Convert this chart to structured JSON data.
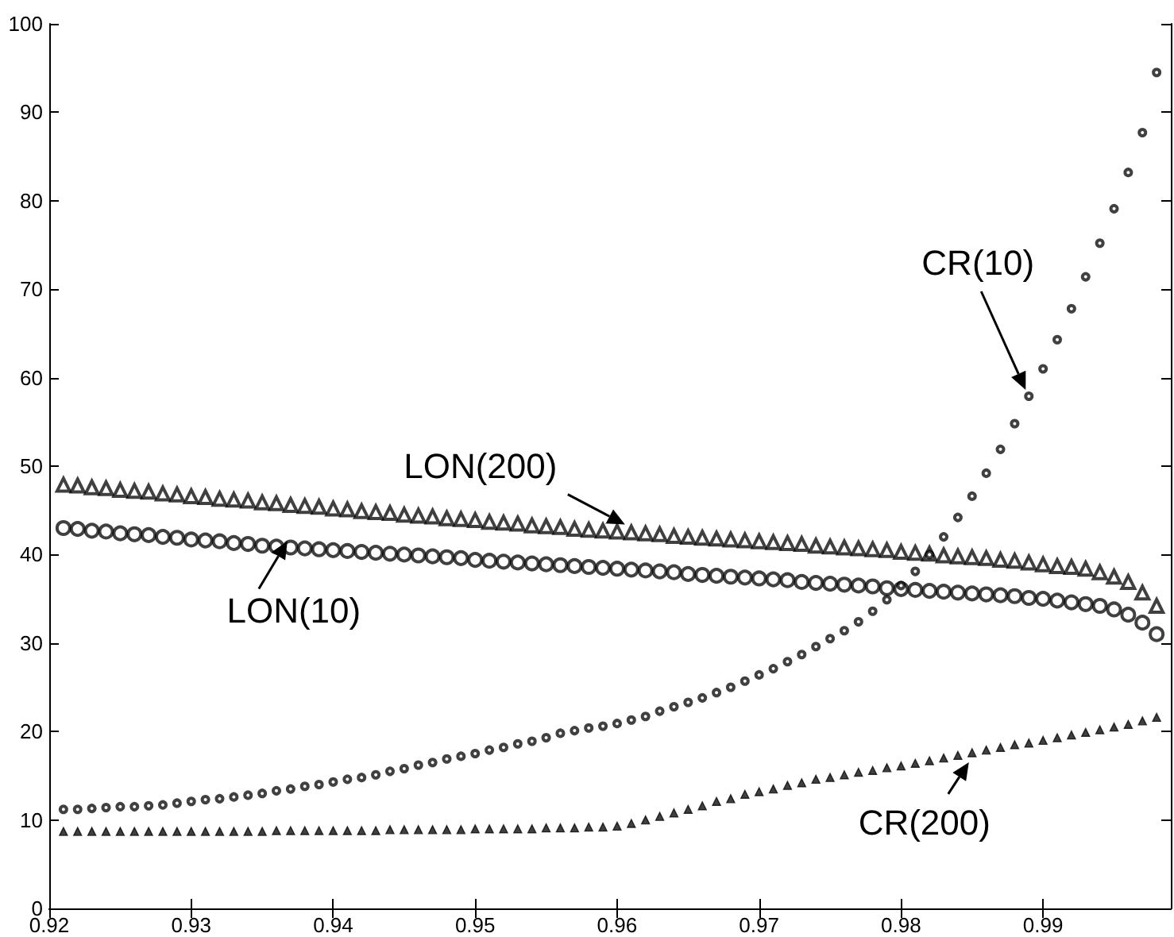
{
  "chart_data": {
    "type": "scatter",
    "x": [
      0.921,
      0.922,
      0.923,
      0.924,
      0.925,
      0.926,
      0.927,
      0.928,
      0.929,
      0.93,
      0.931,
      0.932,
      0.933,
      0.934,
      0.935,
      0.936,
      0.937,
      0.938,
      0.939,
      0.94,
      0.941,
      0.942,
      0.943,
      0.944,
      0.945,
      0.946,
      0.947,
      0.948,
      0.949,
      0.95,
      0.951,
      0.952,
      0.953,
      0.954,
      0.955,
      0.956,
      0.957,
      0.958,
      0.959,
      0.96,
      0.961,
      0.962,
      0.963,
      0.964,
      0.965,
      0.966,
      0.967,
      0.968,
      0.969,
      0.97,
      0.971,
      0.972,
      0.973,
      0.974,
      0.975,
      0.976,
      0.977,
      0.978,
      0.979,
      0.98,
      0.981,
      0.982,
      0.983,
      0.984,
      0.985,
      0.986,
      0.987,
      0.988,
      0.989,
      0.99,
      0.991,
      0.992,
      0.993,
      0.994,
      0.995,
      0.996,
      0.997,
      0.998
    ],
    "series": [
      {
        "color": "#000000",
        "marker": "triangle",
        "values": [
          47.9,
          47.8,
          47.6,
          47.5,
          47.3,
          47.2,
          47.1,
          46.9,
          46.8,
          46.6,
          46.5,
          46.3,
          46.2,
          46.1,
          45.9,
          45.8,
          45.6,
          45.5,
          45.4,
          45.2,
          45.1,
          44.9,
          44.8,
          44.7,
          44.5,
          44.4,
          44.3,
          44.1,
          44.0,
          43.9,
          43.7,
          43.6,
          43.5,
          43.3,
          43.2,
          43.1,
          42.9,
          42.8,
          42.7,
          42.6,
          42.5,
          42.4,
          42.3,
          42.1,
          42.0,
          41.9,
          41.8,
          41.7,
          41.6,
          41.5,
          41.4,
          41.3,
          41.2,
          41.0,
          40.9,
          40.8,
          40.7,
          40.6,
          40.5,
          40.3,
          40.2,
          40.1,
          39.9,
          39.8,
          39.7,
          39.6,
          39.4,
          39.3,
          39.1,
          38.9,
          38.7,
          38.6,
          38.4,
          38.0,
          37.5,
          36.9,
          35.7,
          34.2
        ]
      },
      {
        "color": "#000000",
        "marker": "circle",
        "values": [
          43.0,
          42.9,
          42.7,
          42.6,
          42.4,
          42.3,
          42.2,
          42.0,
          41.9,
          41.7,
          41.6,
          41.5,
          41.3,
          41.2,
          41.0,
          40.9,
          40.8,
          40.7,
          40.6,
          40.5,
          40.4,
          40.3,
          40.2,
          40.1,
          40.0,
          39.9,
          39.8,
          39.7,
          39.6,
          39.4,
          39.3,
          39.2,
          39.1,
          39.0,
          38.9,
          38.8,
          38.7,
          38.6,
          38.5,
          38.4,
          38.3,
          38.2,
          38.1,
          38.0,
          37.8,
          37.7,
          37.6,
          37.5,
          37.4,
          37.3,
          37.2,
          37.1,
          36.9,
          36.8,
          36.7,
          36.6,
          36.5,
          36.4,
          36.2,
          36.1,
          36.0,
          35.9,
          35.8,
          35.7,
          35.6,
          35.5,
          35.4,
          35.3,
          35.1,
          35.0,
          34.8,
          34.6,
          34.4,
          34.2,
          33.8,
          33.2,
          32.3,
          31.0
        ]
      },
      {
        "color": "#000000",
        "marker": "circle",
        "values": [
          11.2,
          11.2,
          11.3,
          11.4,
          11.5,
          11.5,
          11.6,
          11.7,
          11.9,
          12.1,
          12.3,
          12.4,
          12.6,
          12.8,
          13.0,
          13.3,
          13.5,
          13.8,
          14.0,
          14.3,
          14.6,
          14.8,
          15.1,
          15.5,
          15.8,
          16.2,
          16.5,
          16.9,
          17.2,
          17.5,
          17.9,
          18.2,
          18.6,
          18.9,
          19.3,
          19.8,
          20.1,
          20.4,
          20.6,
          20.9,
          21.3,
          21.7,
          22.3,
          22.8,
          23.3,
          23.8,
          24.4,
          25.0,
          25.7,
          26.4,
          27.1,
          27.9,
          28.7,
          29.6,
          30.5,
          31.4,
          32.4,
          33.6,
          34.9,
          36.5,
          38.1,
          40.0,
          42.0,
          44.2,
          46.6,
          49.2,
          51.9,
          54.8,
          57.9,
          61.0,
          64.3,
          67.8,
          71.4,
          75.2,
          79.1,
          83.2,
          87.7,
          94.5
        ]
      },
      {
        "color": "#000000",
        "marker": "triangle",
        "values": [
          8.7,
          8.7,
          8.7,
          8.7,
          8.7,
          8.7,
          8.7,
          8.7,
          8.7,
          8.7,
          8.7,
          8.7,
          8.7,
          8.7,
          8.7,
          8.8,
          8.8,
          8.8,
          8.8,
          8.8,
          8.8,
          8.8,
          8.8,
          8.9,
          8.9,
          8.9,
          8.9,
          8.9,
          8.9,
          9.0,
          9.0,
          9.0,
          9.0,
          9.0,
          9.1,
          9.1,
          9.1,
          9.2,
          9.2,
          9.3,
          9.6,
          10.0,
          10.4,
          10.8,
          11.2,
          11.6,
          12.1,
          12.4,
          12.9,
          13.2,
          13.5,
          13.9,
          14.2,
          14.6,
          14.8,
          15.1,
          15.4,
          15.6,
          15.9,
          16.1,
          16.4,
          16.7,
          17.0,
          17.3,
          17.6,
          17.9,
          18.2,
          18.5,
          18.7,
          19.0,
          19.3,
          19.6,
          19.9,
          20.2,
          20.5,
          20.8,
          21.2,
          21.6
        ]
      }
    ],
    "xlim": [
      0.92,
      0.999
    ],
    "xticks": [
      0.92,
      0.93,
      0.94,
      0.95,
      0.96,
      0.97,
      0.98,
      0.99
    ],
    "ylim": [
      0,
      100
    ],
    "yticks": [
      0,
      10,
      20,
      30,
      40,
      50,
      60,
      70,
      80,
      90,
      100
    ],
    "annotations": [
      {
        "text": "LON(200)",
        "x": 0.961,
        "y": 42.5
      },
      {
        "text": "LON(10)",
        "x": 0.937,
        "y": 40.8
      },
      "CR(10)",
      {
        "text": "CR(200)",
        "x": 0.985,
        "y": 17.6
      }
    ],
    "grid": false
  }
}
